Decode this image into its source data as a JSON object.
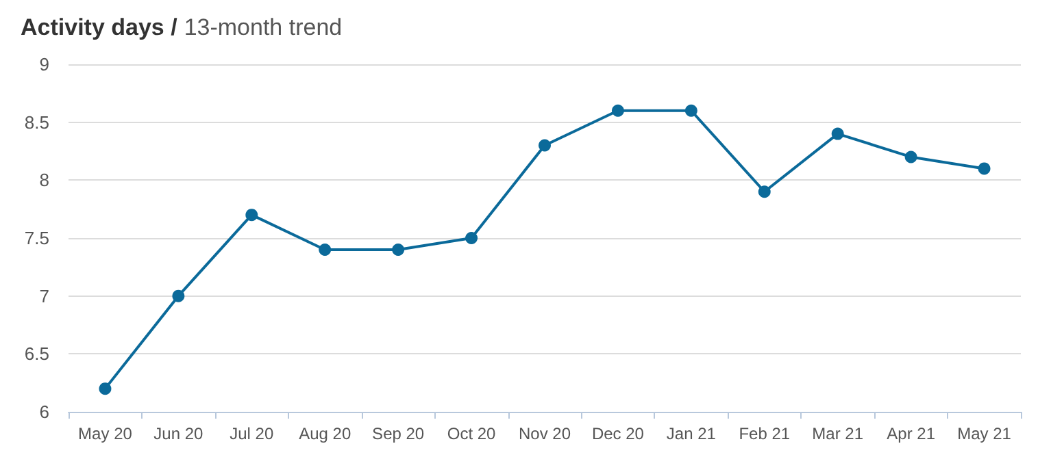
{
  "chart_data": {
    "type": "line",
    "title": "Activity days /",
    "subtitle": "13-month trend",
    "categories": [
      "May 20",
      "Jun 20",
      "Jul 20",
      "Aug 20",
      "Sep 20",
      "Oct 20",
      "Nov 20",
      "Dec 20",
      "Jan 21",
      "Feb 21",
      "Mar 21",
      "Apr 21",
      "May 21"
    ],
    "series": [
      {
        "color": "#0b6a9a",
        "values": [
          6.2,
          7.0,
          7.7,
          7.4,
          7.4,
          7.5,
          8.3,
          8.6,
          8.6,
          7.9,
          8.4,
          8.2,
          8.1
        ]
      }
    ],
    "ylim": [
      6,
      9
    ],
    "yticks": [
      6,
      6.5,
      7,
      7.5,
      8,
      8.5,
      9
    ],
    "grid": "y",
    "marker": "circle",
    "line_style": "solid"
  }
}
